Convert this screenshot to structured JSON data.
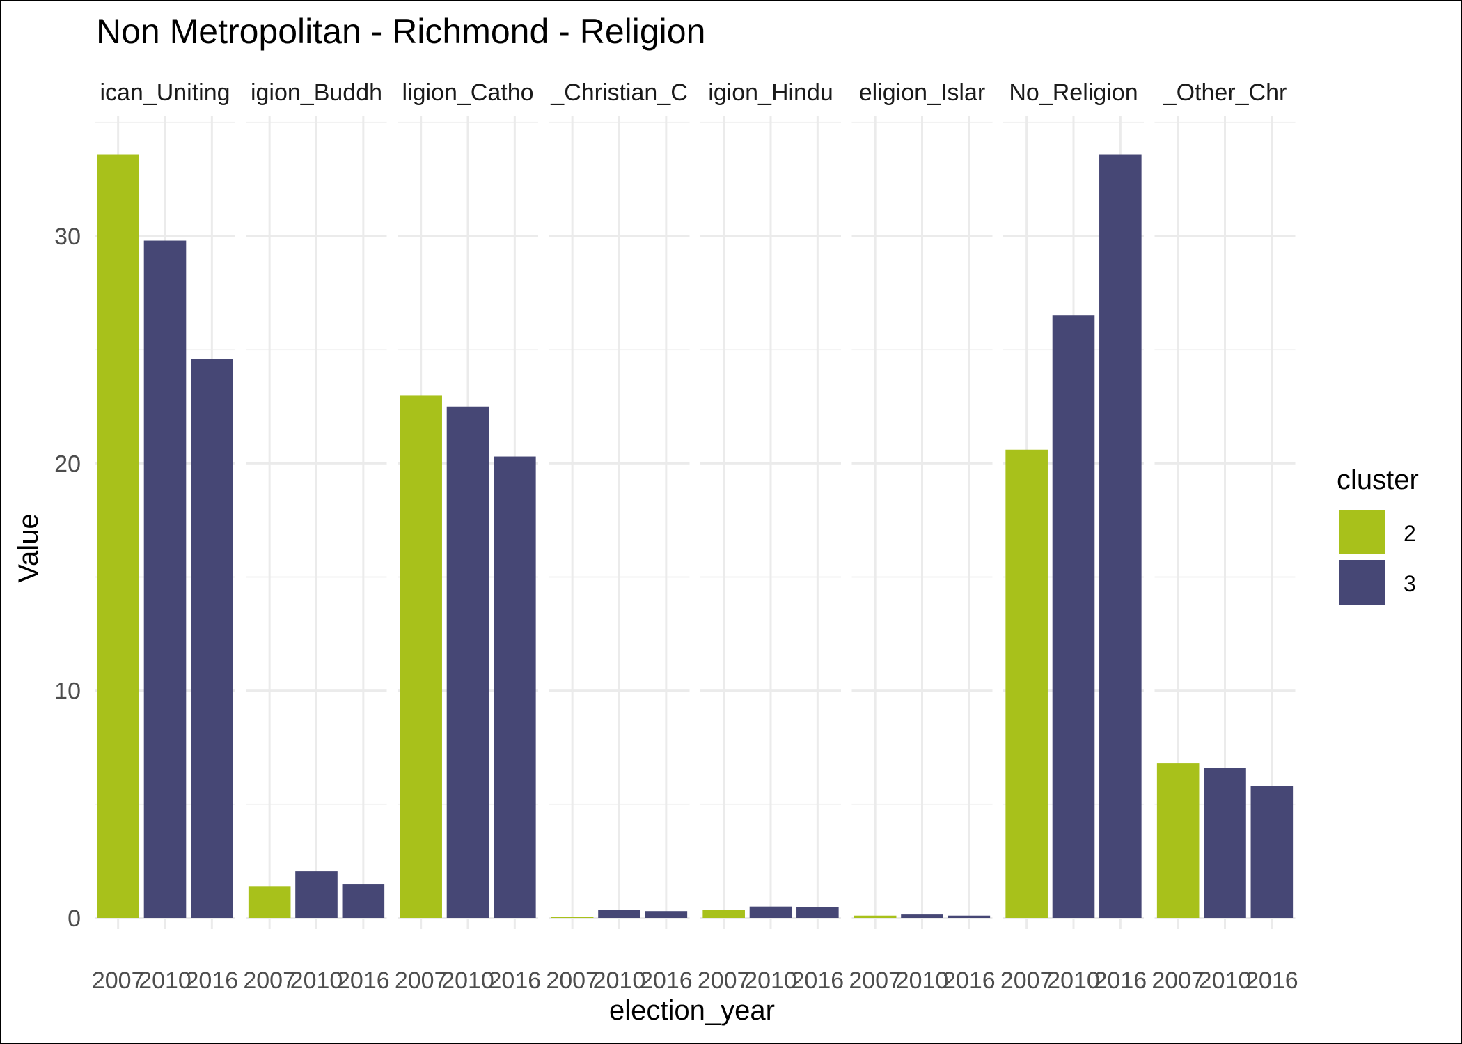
{
  "chart_data": {
    "type": "bar",
    "title": "Non Metropolitan - Richmond - Religion",
    "xlabel": "election_year",
    "ylabel": "Value",
    "ylim": [
      0,
      35
    ],
    "yticks": [
      0,
      10,
      20,
      30
    ],
    "categories": [
      "2007",
      "2010",
      "2016"
    ],
    "facets": [
      {
        "label": "ican_Uniting",
        "values": [
          33.6,
          29.8,
          24.6
        ],
        "clusters": [
          "2",
          "3",
          "3"
        ]
      },
      {
        "label": "igion_Buddh",
        "values": [
          1.4,
          2.05,
          1.5
        ],
        "clusters": [
          "2",
          "3",
          "3"
        ]
      },
      {
        "label": "ligion_Catho",
        "values": [
          23.0,
          22.5,
          20.3
        ],
        "clusters": [
          "2",
          "3",
          "3"
        ]
      },
      {
        "label": "_Christian_C",
        "values": [
          0.03,
          0.35,
          0.3
        ],
        "clusters": [
          "2",
          "3",
          "3"
        ]
      },
      {
        "label": "igion_Hindu",
        "values": [
          0.35,
          0.5,
          0.48
        ],
        "clusters": [
          "2",
          "3",
          "3"
        ]
      },
      {
        "label": "eligion_Islar",
        "values": [
          0.1,
          0.15,
          0.1
        ],
        "clusters": [
          "2",
          "3",
          "3"
        ]
      },
      {
        "label": "No_Religion",
        "values": [
          20.6,
          26.5,
          33.6
        ],
        "clusters": [
          "2",
          "3",
          "3"
        ]
      },
      {
        "label": "_Other_Chr",
        "values": [
          6.8,
          6.6,
          5.8
        ],
        "clusters": [
          "2",
          "3",
          "3"
        ]
      }
    ],
    "legend": {
      "title": "cluster",
      "position": "right",
      "items": [
        {
          "label": "2",
          "color": "#a8c11b"
        },
        {
          "label": "3",
          "color": "#464775"
        }
      ]
    },
    "grid": true
  }
}
